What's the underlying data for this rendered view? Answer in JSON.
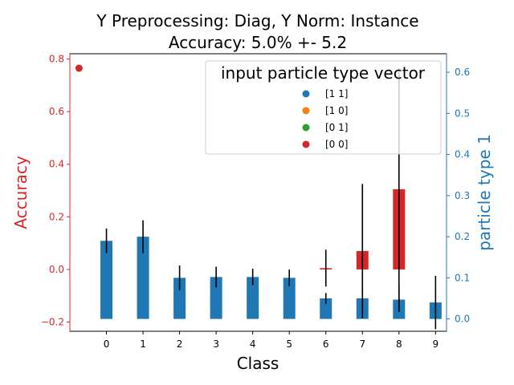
{
  "chart_data": {
    "type": "bar",
    "title_line1": "Y Preprocessing: Diag, Y Norm: Instance",
    "title_line2": "Accuracy: 5.0% +- 5.2",
    "xlabel": "Class",
    "ylabel_left": "Accuracy",
    "ylabel_right": "particle type 1",
    "categories": [
      "0",
      "1",
      "2",
      "3",
      "4",
      "5",
      "6",
      "7",
      "8",
      "9"
    ],
    "xlim": [
      -1.0,
      9.3
    ],
    "left_axis": {
      "ylim": [
        -0.235,
        0.82
      ],
      "ticks": [
        -0.2,
        0.0,
        0.2,
        0.4,
        0.6,
        0.8
      ],
      "tick_labels": [
        "−0.2",
        "0.0",
        "0.2",
        "0.4",
        "0.6",
        "0.8"
      ],
      "color": "#d62728"
    },
    "right_axis": {
      "ylim": [
        -0.03,
        0.645
      ],
      "ticks": [
        0.0,
        0.1,
        0.2,
        0.3,
        0.4,
        0.5,
        0.6
      ],
      "tick_labels": [
        "0.0",
        "0.1",
        "0.2",
        "0.3",
        "0.4",
        "0.5",
        "0.6"
      ],
      "color": "#1f77b4"
    },
    "accuracy_series": {
      "name": "[0 0]",
      "color": "#d62728",
      "bars": [
        {
          "x": 6,
          "value": 0.005,
          "err": 0.0
        },
        {
          "x": 7,
          "value": 0.07,
          "err": 0.0
        },
        {
          "x": 8,
          "value": 0.305,
          "err": 0.0
        }
      ],
      "marker": {
        "x": -0.75,
        "value": 0.765
      }
    },
    "accuracy_errorbars": [
      {
        "x": 6,
        "low": -0.065,
        "high": 0.075
      },
      {
        "x": 7,
        "low": -0.185,
        "high": 0.325
      },
      {
        "x": 8,
        "low": -0.155,
        "high": 0.765
      }
    ],
    "particle_series": {
      "name": "[1 1]",
      "color": "#1f77b4",
      "values": [
        0.19,
        0.2,
        0.1,
        0.102,
        0.102,
        0.1,
        0.05,
        0.05,
        0.047,
        0.04
      ],
      "err": [
        0.03,
        0.04,
        0.03,
        0.025,
        0.02,
        0.02,
        0.013,
        0.023,
        0.03,
        0.065
      ]
    },
    "legend": {
      "title": "input particle type vector",
      "placement": "upper-right",
      "entries": [
        {
          "label": "[1 1]",
          "color": "#1f77b4"
        },
        {
          "label": "[1 0]",
          "color": "#ff7f0e"
        },
        {
          "label": "[0 1]",
          "color": "#2ca02c"
        },
        {
          "label": "[0 0]",
          "color": "#d62728"
        }
      ]
    }
  }
}
